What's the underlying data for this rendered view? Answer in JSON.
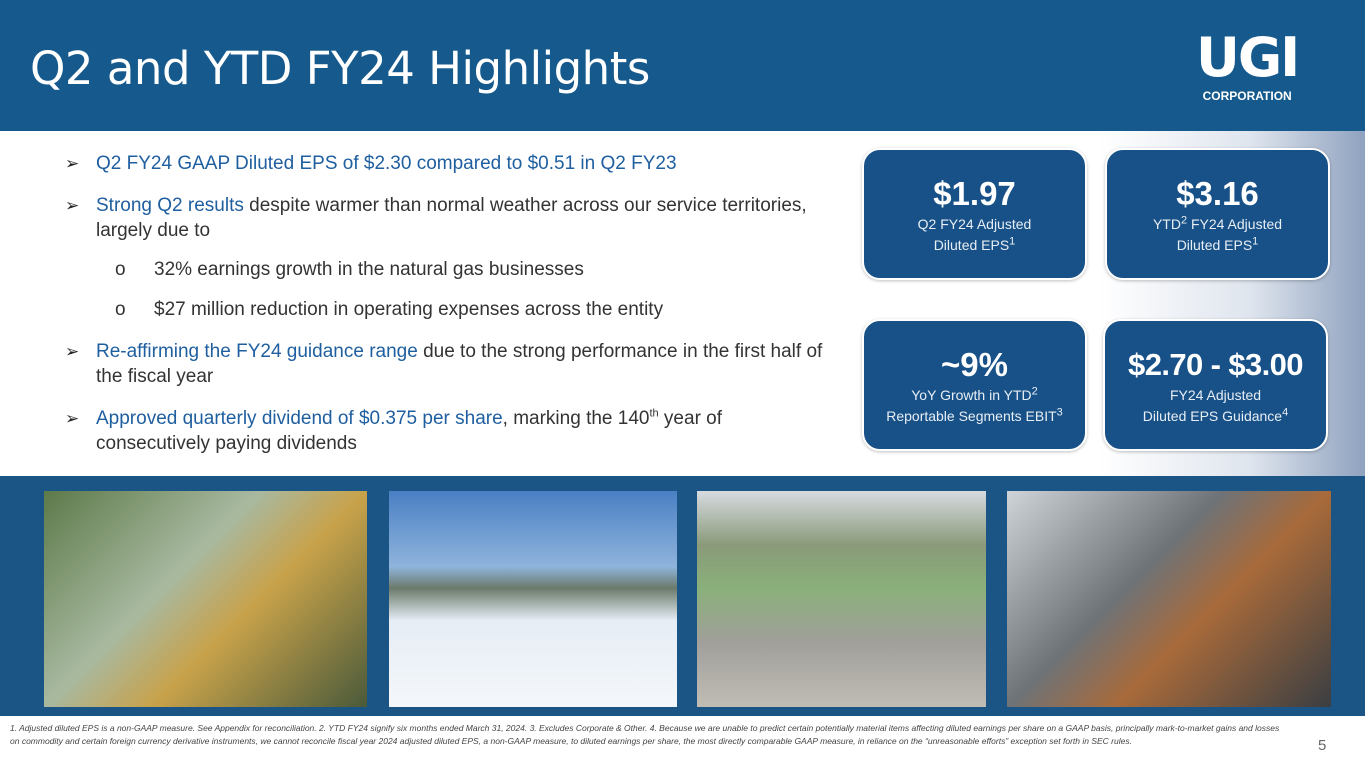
{
  "header": {
    "title": "Q2 and YTD FY24 Highlights",
    "logo_main": "UGI",
    "logo_sub": "CORPORATION"
  },
  "bullets": [
    {
      "highlight": "Q2 FY24 GAAP Diluted EPS of $2.30 compared to $0.51 in Q2 FY23",
      "text": ""
    },
    {
      "highlight": "Strong Q2 results",
      "text": " despite warmer than normal weather across our service territories, largely due to"
    },
    {
      "highlight": "Re-affirming the FY24 guidance range",
      "text": " due to the strong performance in the first half of the fiscal year"
    },
    {
      "highlight": "Approved quarterly dividend of $0.375 per share",
      "text": ", marking the 140",
      "sup": "th",
      "text2": " year of consecutively paying dividends"
    }
  ],
  "sub_bullets": [
    "32% earnings growth in the natural gas businesses",
    "$27 million reduction in operating expenses across the entity"
  ],
  "cards": [
    {
      "value": "$1.97",
      "line1": "Q2 FY24 Adjusted",
      "line2": "Diluted EPS",
      "sup2": "1"
    },
    {
      "value": "$3.16",
      "line1": "YTD",
      "sup1": "2",
      "line1b": " FY24 Adjusted",
      "line2": "Diluted EPS",
      "sup2": "1"
    },
    {
      "value": "~9%",
      "line1": "YoY Growth in YTD",
      "sup1": "2",
      "line2": "Reportable Segments EBIT",
      "sup2": "3"
    },
    {
      "value": "$2.70 - $3.00",
      "line1": "FY24 Adjusted",
      "line2": "Diluted EPS Guidance",
      "sup2": "4"
    }
  ],
  "footer": "1. Adjusted diluted EPS is a non-GAAP measure. See Appendix for reconciliation. 2. YTD FY24 signify six months ended March 31, 2024. 3. Excludes Corporate & Other. 4. Because we are unable to predict certain potentially material items affecting diluted earnings per share on a GAAP basis, principally mark-to-market gains and losses on commodity and certain foreign currency derivative instruments, we cannot reconcile fiscal year 2024 adjusted diluted EPS, a non-GAAP measure, to diluted earnings per share, the most directly comparable GAAP measure, in reliance on the “unreasonable efforts” exception set forth in SEC rules.",
  "page_number": "5",
  "colors": {
    "header": "#165a8d",
    "card": "#175187",
    "highlight": "#1f5fa0"
  }
}
